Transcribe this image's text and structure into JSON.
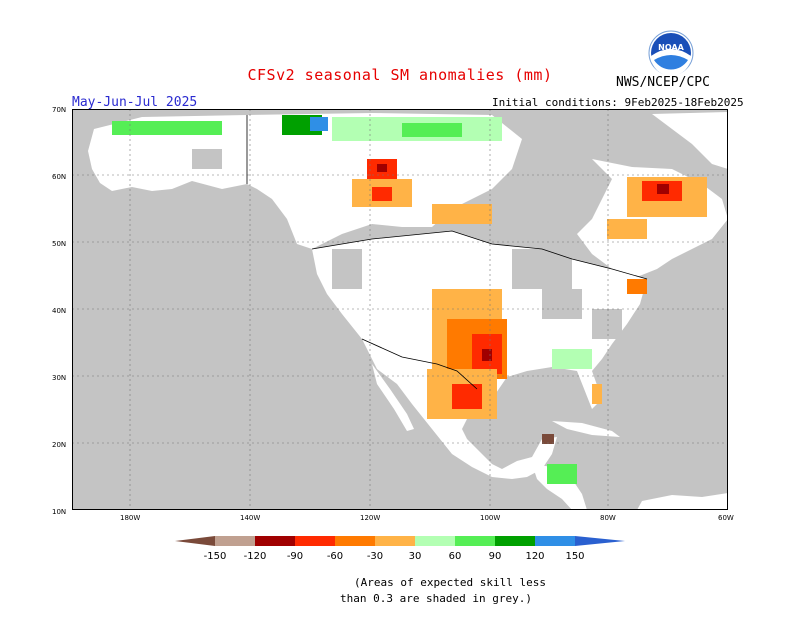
{
  "title": "CFSv2 seasonal SM anomalies (mm)",
  "agency": "NWS/NCEP/CPC",
  "period": "May-Jun-Jul 2025",
  "initial_conditions": "Initial conditions: 9Feb2025-18Feb2025",
  "logo_text": "NOAA",
  "lat_labels": [
    "70N",
    "60N",
    "50N",
    "40N",
    "30N",
    "20N",
    "10N"
  ],
  "lon_labels": [
    "180W",
    "140W",
    "120W",
    "100W",
    "80W",
    "60W"
  ],
  "legend": {
    "thresholds": [
      "-150",
      "-120",
      "-90",
      "-60",
      "-30",
      "30",
      "60",
      "90",
      "120",
      "150"
    ],
    "colors": [
      "#7a4a3a",
      "#c0a090",
      "#a00000",
      "#ff2a00",
      "#ff7a00",
      "#ffb347",
      "#ffffff",
      "#b3ffb3",
      "#55ee55",
      "#00a000",
      "#2f8fe6",
      "#2a60d0"
    ]
  },
  "note_line1": "(Areas of expected skill less",
  "note_line2": "than 0.3 are shaded in grey.)",
  "colors": {
    "grey": "#c4c4c4",
    "title": "#e60000",
    "period": "#2a2ad0"
  }
}
